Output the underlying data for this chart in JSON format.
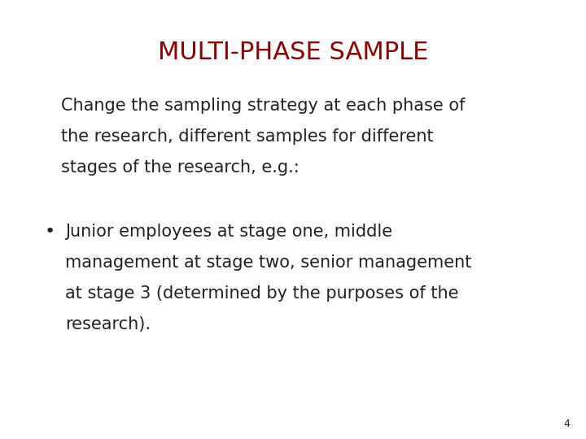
{
  "title": "MULTI-PHASE SAMPLE",
  "title_color": "#8B0000",
  "title_fontsize": 22,
  "background_color": "#FFFFFF",
  "text_color": "#222222",
  "intro_line1": "Change the sampling strategy at each phase of",
  "intro_line2": "the research, different samples for different",
  "intro_line3": "stages of the research, e.g.:",
  "bullet_line1": "Junior employees at stage one, middle",
  "bullet_line2": "management at stage two, senior management",
  "bullet_line3": "at stage 3 (determined by the purposes of the",
  "bullet_line4": "research).",
  "bullet_symbol": "•",
  "page_number": "4",
  "body_fontsize": 15,
  "page_fontsize": 9
}
